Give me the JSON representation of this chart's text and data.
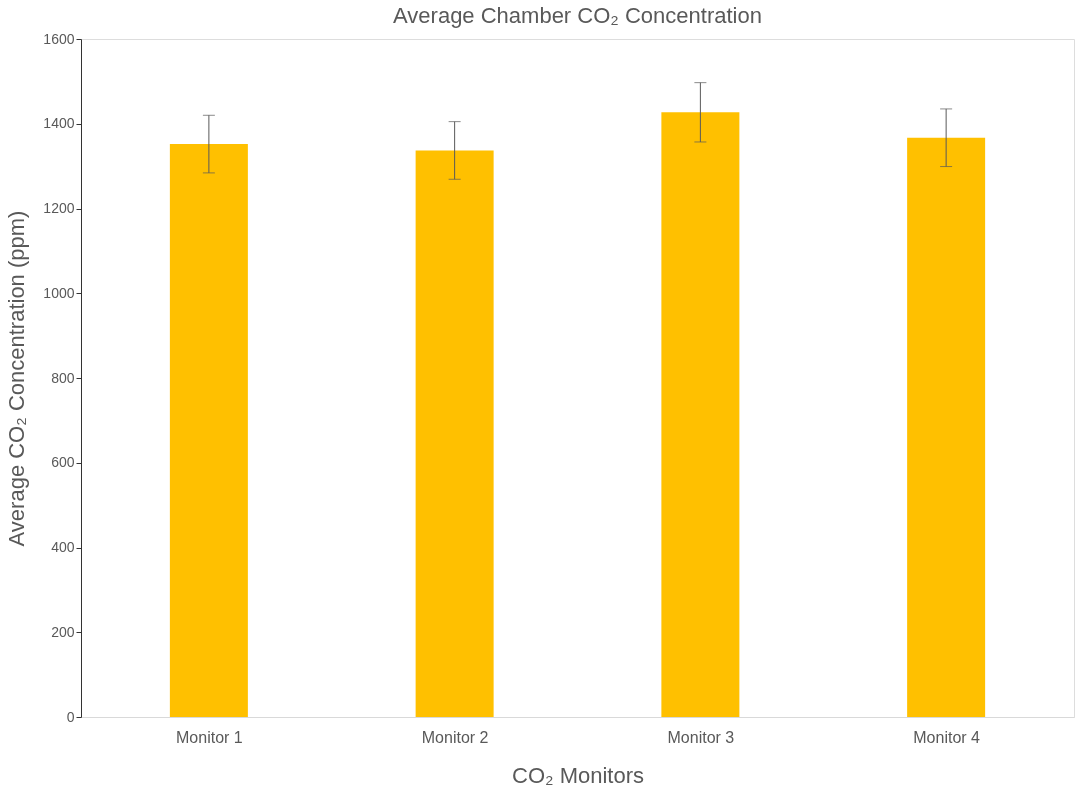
{
  "chart_data": {
    "type": "bar",
    "title": "Average Chamber CO₂ Concentration",
    "xlabel": "CO₂ Monitors",
    "ylabel": "Average CO₂ Concentration (ppm)",
    "categories": [
      "Monitor 1",
      "Monitor 2",
      "Monitor 3",
      "Monitor 4"
    ],
    "values": [
      1352,
      1337,
      1427,
      1367
    ],
    "errors": [
      68,
      68,
      70,
      68
    ],
    "color": "#ffc000",
    "ylim": [
      0,
      1600
    ],
    "yticks": [
      0,
      200,
      400,
      600,
      800,
      1000,
      1200,
      1400,
      1600
    ],
    "grid": false
  }
}
